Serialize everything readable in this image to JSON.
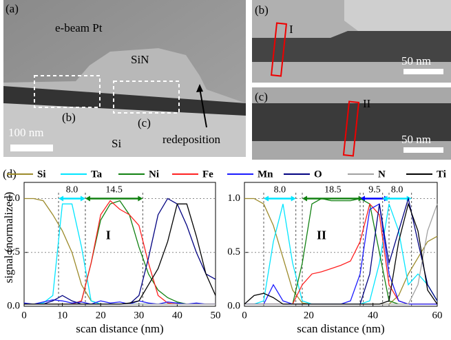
{
  "images": [
    {
      "label": "(a)",
      "texts": [
        "e-beam Pt",
        "SiN",
        "(b)",
        "(c)",
        "100 nm",
        "Si",
        "redeposition"
      ]
    },
    {
      "label": "(b)",
      "texts": [
        "I",
        "50 nm"
      ]
    },
    {
      "label": "(c)",
      "texts": [
        "II",
        "50 nm"
      ]
    }
  ],
  "figure_label": "(d)",
  "chart_data": [
    {
      "type": "line",
      "ylabel": "signal (normalized)",
      "xlabel": "scan distance (nm)",
      "x": [
        0,
        2.5,
        5,
        7.5,
        10,
        12.5,
        15,
        17.5,
        20,
        22.5,
        25,
        27.5,
        30,
        32.5,
        35,
        37.5,
        40,
        42.5,
        45,
        47.5,
        50
      ],
      "xlim": [
        0,
        50
      ],
      "xticks": [
        0,
        10,
        20,
        30,
        40,
        50
      ],
      "ylim": [
        0,
        1.15
      ],
      "yticks": [
        {
          "value": 0,
          "label": "0.0"
        },
        {
          "value": 0.5,
          "label": "0.5"
        },
        {
          "value": 1,
          "label": "1.0"
        }
      ],
      "grid": true,
      "series": [
        {
          "name": "Si",
          "color": "#9c8a2a",
          "values": [
            1,
            1,
            0.98,
            0.85,
            0.7,
            0.5,
            0.2,
            0.05,
            0.02,
            0.02,
            0.02,
            0.02,
            0.02,
            0.02,
            0.02,
            0.02,
            0.02,
            0.02,
            0.02,
            0.02,
            0.02
          ]
        },
        {
          "name": "Ta",
          "color": "#00e5ff",
          "values": [
            0.02,
            0.02,
            0.03,
            0.1,
            0.95,
            0.95,
            0.55,
            0.05,
            0.02,
            0.02,
            0.02,
            0.02,
            0.02,
            0.02,
            0.02,
            0.02,
            0.02,
            0.02,
            0.02,
            0.02,
            0.02
          ]
        },
        {
          "name": "Ni",
          "color": "#108010",
          "values": [
            0.02,
            0.02,
            0.02,
            0.02,
            0.02,
            0.02,
            0.05,
            0.4,
            0.8,
            0.95,
            0.98,
            0.85,
            0.55,
            0.3,
            0.15,
            0.08,
            0.04,
            0.02,
            0.02,
            0.02,
            0.02
          ]
        },
        {
          "name": "Fe",
          "color": "#ff2020",
          "values": [
            0.02,
            0.02,
            0.02,
            0.02,
            0.02,
            0.02,
            0.05,
            0.4,
            0.85,
            0.98,
            0.9,
            0.85,
            0.75,
            0.4,
            0.1,
            0.03,
            0.02,
            0.02,
            0.02,
            0.02,
            0.02
          ]
        },
        {
          "name": "Mn",
          "color": "#1a1aff",
          "values": [
            0.03,
            0.02,
            0.04,
            0.06,
            0.05,
            0.03,
            0.04,
            0.02,
            0.05,
            0.03,
            0.04,
            0.02,
            0.05,
            0.03,
            0.02,
            0.04,
            0.03,
            0.02,
            0.03,
            0.02,
            0.02
          ]
        },
        {
          "name": "O",
          "color": "#000080",
          "values": [
            0.02,
            0.02,
            0.02,
            0.05,
            0.1,
            0.05,
            0.02,
            0.02,
            0.02,
            0.02,
            0.02,
            0.02,
            0.1,
            0.45,
            0.85,
            1,
            0.95,
            0.75,
            0.5,
            0.3,
            0.25
          ]
        },
        {
          "name": "N",
          "color": "#a0a0a0",
          "values": [
            0.02,
            0.02,
            0.02,
            0.02,
            0.02,
            0.02,
            0.02,
            0.02,
            0.02,
            0.02,
            0.02,
            0.02,
            0.02,
            0.02,
            0.02,
            0.02,
            0.02,
            0.02,
            0.02,
            0.02,
            0.02
          ]
        },
        {
          "name": "Ti",
          "color": "#000000",
          "values": [
            0.02,
            0.02,
            0.02,
            0.02,
            0.02,
            0.02,
            0.02,
            0.02,
            0.02,
            0.02,
            0.02,
            0.03,
            0.05,
            0.2,
            0.35,
            0.6,
            0.95,
            0.95,
            0.65,
            0.3,
            0.1
          ]
        }
      ],
      "annotations": [
        {
          "text": "8.0",
          "from": 9,
          "to": 16,
          "color": "#00e5ff"
        },
        {
          "text": "14.5",
          "from": 16,
          "to": 31,
          "color": "#108010"
        }
      ],
      "region": {
        "text": "I",
        "x": 22,
        "y": 0.65
      }
    },
    {
      "type": "line",
      "xlabel": "scan distance (nm)",
      "x": [
        0,
        3,
        6,
        9,
        12,
        15,
        18,
        21,
        24,
        27,
        30,
        33,
        36,
        39,
        42,
        45,
        48,
        51,
        54,
        57,
        60
      ],
      "xlim": [
        0,
        60
      ],
      "xticks": [
        0,
        20,
        40,
        60
      ],
      "ylim": [
        0,
        1.15
      ],
      "yticks": [
        {
          "value": 0,
          "label": "0.0"
        },
        {
          "value": 0.5,
          "label": "0.5"
        },
        {
          "value": 1,
          "label": "1.0"
        }
      ],
      "grid": true,
      "series": [
        {
          "color": "#9c8a2a",
          "values": [
            1,
            1,
            0.95,
            0.75,
            0.45,
            0.15,
            0.03,
            0.02,
            0.02,
            0.02,
            0.02,
            0.02,
            0.02,
            0.02,
            0.02,
            0.02,
            0.1,
            0.3,
            0.45,
            0.6,
            0.65
          ]
        },
        {
          "color": "#00e5ff",
          "values": [
            0.02,
            0.02,
            0.05,
            0.6,
            0.95,
            0.4,
            0.05,
            0.02,
            0.02,
            0.02,
            0.02,
            0.02,
            0.02,
            0.05,
            0.4,
            0.95,
            0.7,
            0.2,
            0.3,
            0.2,
            0.05
          ]
        },
        {
          "color": "#108010",
          "values": [
            0.02,
            0.02,
            0.02,
            0.02,
            0.02,
            0.02,
            0.4,
            0.95,
            1,
            0.98,
            0.98,
            0.98,
            1,
            0.95,
            0.5,
            0.05,
            0.02,
            0.02,
            0.02,
            0.02,
            0.02
          ]
        },
        {
          "color": "#ff2020",
          "values": [
            0.02,
            0.02,
            0.02,
            0.02,
            0.02,
            0.02,
            0.2,
            0.3,
            0.32,
            0.35,
            0.38,
            0.42,
            0.6,
            0.95,
            0.85,
            0.2,
            0.05,
            0.02,
            0.02,
            0.02,
            0.02
          ]
        },
        {
          "color": "#1a1aff",
          "values": [
            0.02,
            0.02,
            0.02,
            0.2,
            0.05,
            0.02,
            0.02,
            0.02,
            0.02,
            0.02,
            0.02,
            0.05,
            0.3,
            0.9,
            0.95,
            0.3,
            0.05,
            0.02,
            0.02,
            0.02,
            0.02
          ]
        },
        {
          "color": "#000080",
          "values": [
            0.02,
            0.02,
            0.02,
            0.02,
            0.02,
            0.02,
            0.02,
            0.02,
            0.02,
            0.02,
            0.02,
            0.02,
            0.02,
            0.3,
            0.95,
            0.4,
            0.7,
            1,
            0.6,
            0.2,
            0.05
          ]
        },
        {
          "color": "#a0a0a0",
          "values": [
            0.02,
            0.02,
            0.02,
            0.02,
            0.02,
            0.02,
            0.02,
            0.02,
            0.02,
            0.02,
            0.02,
            0.02,
            0.02,
            0.02,
            0.02,
            0.02,
            0.02,
            0.02,
            0.2,
            0.7,
            0.95
          ]
        },
        {
          "color": "#000000",
          "values": [
            0.02,
            0.1,
            0.12,
            0.08,
            0.02,
            0.02,
            0.02,
            0.02,
            0.02,
            0.02,
            0.02,
            0.02,
            0.02,
            0.02,
            0.02,
            0.05,
            0.6,
            0.95,
            0.7,
            0.15,
            0.02
          ]
        }
      ],
      "annotations": [
        {
          "text": "8.0",
          "from": 6,
          "to": 16,
          "color": "#00e5ff"
        },
        {
          "text": "18.5",
          "from": 18,
          "to": 37,
          "color": "#108010"
        },
        {
          "text": "9.5",
          "from": 36,
          "to": 45,
          "color": "#0000ff"
        },
        {
          "text": "8.0",
          "from": 43,
          "to": 52,
          "color": "#00e5ff"
        }
      ],
      "region": {
        "text": "II",
        "x": 24,
        "y": 0.65
      }
    }
  ]
}
